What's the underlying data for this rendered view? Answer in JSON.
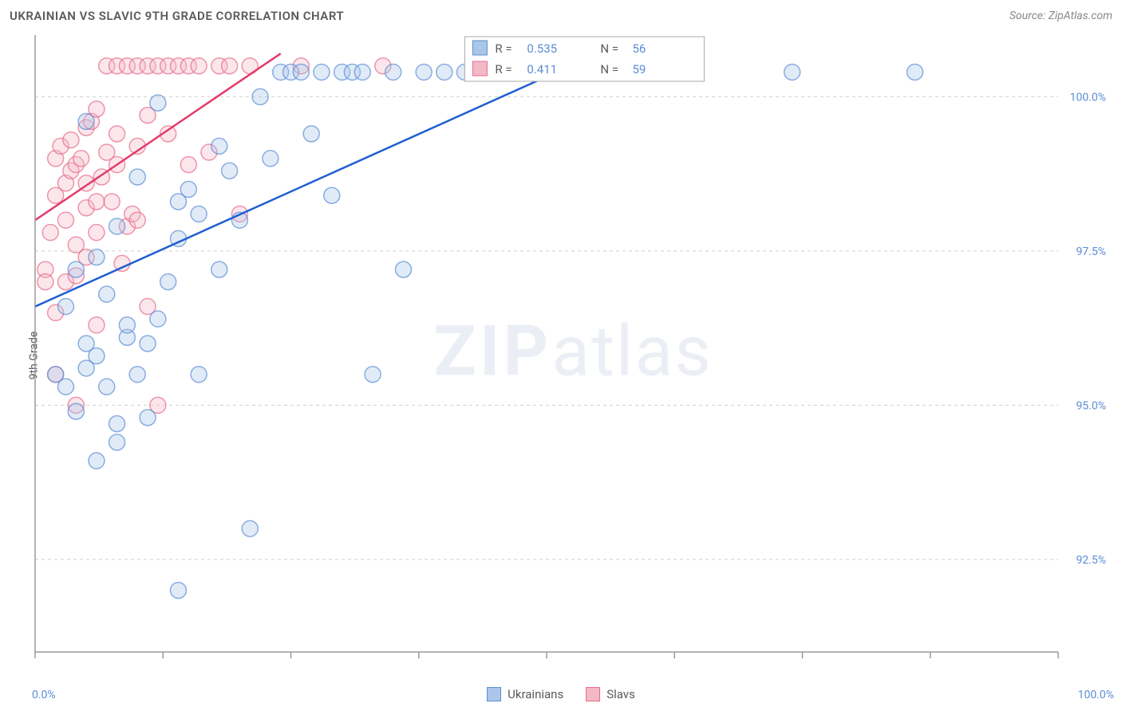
{
  "title": "UKRAINIAN VS SLAVIC 9TH GRADE CORRELATION CHART",
  "source_label": "Source: ZipAtlas.com",
  "ylabel": "9th Grade",
  "watermark": {
    "bold": "ZIP",
    "rest": "atlas"
  },
  "chart": {
    "type": "scatter",
    "background_color": "#ffffff",
    "grid_color": "#cfcfcf",
    "axis_color": "#9a9a9a",
    "xlim": [
      0,
      100
    ],
    "ylim": [
      91,
      101
    ],
    "x_tick_positions": [
      0,
      12.5,
      25,
      37.5,
      50,
      62.5,
      75,
      87.5,
      100
    ],
    "x_tick_labels_shown": {
      "start": "0.0%",
      "end": "100.0%"
    },
    "y_ticks": [
      {
        "v": 92.5,
        "label": "92.5%"
      },
      {
        "v": 95.0,
        "label": "95.0%"
      },
      {
        "v": 97.5,
        "label": "97.5%"
      },
      {
        "v": 100.0,
        "label": "100.0%"
      }
    ],
    "marker_radius": 10,
    "series": [
      {
        "name": "Ukrainians",
        "color_fill": "#aac6e8",
        "color_stroke": "#5b8dd6",
        "trend_color": "#1f5fd0",
        "R": 0.535,
        "N": 56,
        "trend": {
          "x1": 0,
          "y1": 96.6,
          "x2": 55,
          "y2": 100.7
        },
        "points": [
          [
            2,
            95.5
          ],
          [
            3,
            96.6
          ],
          [
            3,
            95.3
          ],
          [
            4,
            94.9
          ],
          [
            4,
            97.2
          ],
          [
            5,
            96.0
          ],
          [
            5,
            95.6
          ],
          [
            5,
            99.6
          ],
          [
            6,
            97.4
          ],
          [
            6,
            95.8
          ],
          [
            6,
            94.1
          ],
          [
            7,
            96.8
          ],
          [
            7,
            95.3
          ],
          [
            8,
            97.9
          ],
          [
            8,
            94.7
          ],
          [
            8,
            94.4
          ],
          [
            9,
            96.1
          ],
          [
            9,
            96.3
          ],
          [
            10,
            95.5
          ],
          [
            10,
            98.7
          ],
          [
            11,
            94.8
          ],
          [
            11,
            96.0
          ],
          [
            12,
            96.4
          ],
          [
            12,
            99.9
          ],
          [
            13,
            97.0
          ],
          [
            14,
            98.3
          ],
          [
            14,
            97.7
          ],
          [
            14,
            92.0
          ],
          [
            15,
            98.5
          ],
          [
            16,
            98.1
          ],
          [
            16,
            95.5
          ],
          [
            18,
            99.2
          ],
          [
            18,
            97.2
          ],
          [
            19,
            98.8
          ],
          [
            20,
            98.0
          ],
          [
            21,
            93.0
          ],
          [
            22,
            100.0
          ],
          [
            23,
            99.0
          ],
          [
            24,
            100.4
          ],
          [
            25,
            100.4
          ],
          [
            26,
            100.4
          ],
          [
            27,
            99.4
          ],
          [
            28,
            100.4
          ],
          [
            29,
            98.4
          ],
          [
            30,
            100.4
          ],
          [
            31,
            100.4
          ],
          [
            32,
            100.4
          ],
          [
            33,
            95.5
          ],
          [
            35,
            100.4
          ],
          [
            36,
            97.2
          ],
          [
            38,
            100.4
          ],
          [
            40,
            100.4
          ],
          [
            42,
            100.4
          ],
          [
            64,
            100.4
          ],
          [
            74,
            100.4
          ],
          [
            86,
            100.4
          ]
        ]
      },
      {
        "name": "Slavs",
        "color_fill": "#f4b9c7",
        "color_stroke": "#e86a8b",
        "trend_color": "#e33b6a",
        "R": 0.411,
        "N": 59,
        "trend": {
          "x1": 0,
          "y1": 98.0,
          "x2": 24,
          "y2": 100.7
        },
        "points": [
          [
            1,
            97.2
          ],
          [
            1,
            97.0
          ],
          [
            1.5,
            97.8
          ],
          [
            2,
            96.5
          ],
          [
            2,
            95.5
          ],
          [
            2,
            98.4
          ],
          [
            2,
            99.0
          ],
          [
            2.5,
            99.2
          ],
          [
            3,
            98.6
          ],
          [
            3,
            98.0
          ],
          [
            3,
            97.0
          ],
          [
            3.5,
            99.3
          ],
          [
            3.5,
            98.8
          ],
          [
            4,
            97.6
          ],
          [
            4,
            97.1
          ],
          [
            4,
            98.9
          ],
          [
            4,
            95.0
          ],
          [
            4.5,
            99.0
          ],
          [
            5,
            98.2
          ],
          [
            5,
            98.6
          ],
          [
            5,
            99.5
          ],
          [
            5,
            97.4
          ],
          [
            5.5,
            99.6
          ],
          [
            6,
            97.8
          ],
          [
            6,
            96.3
          ],
          [
            6,
            98.3
          ],
          [
            6,
            99.8
          ],
          [
            6.5,
            98.7
          ],
          [
            7,
            100.5
          ],
          [
            7,
            99.1
          ],
          [
            7.5,
            98.3
          ],
          [
            8,
            100.5
          ],
          [
            8,
            98.9
          ],
          [
            8,
            99.4
          ],
          [
            8.5,
            97.3
          ],
          [
            9,
            100.5
          ],
          [
            9,
            97.9
          ],
          [
            9.5,
            98.1
          ],
          [
            10,
            100.5
          ],
          [
            10,
            99.2
          ],
          [
            10,
            98.0
          ],
          [
            11,
            96.6
          ],
          [
            11,
            99.7
          ],
          [
            11,
            100.5
          ],
          [
            12,
            100.5
          ],
          [
            12,
            95.0
          ],
          [
            13,
            100.5
          ],
          [
            13,
            99.4
          ],
          [
            14,
            100.5
          ],
          [
            15,
            100.5
          ],
          [
            15,
            98.9
          ],
          [
            16,
            100.5
          ],
          [
            17,
            99.1
          ],
          [
            18,
            100.5
          ],
          [
            19,
            100.5
          ],
          [
            20,
            98.1
          ],
          [
            21,
            100.5
          ],
          [
            26,
            100.5
          ],
          [
            34,
            100.5
          ]
        ]
      }
    ],
    "corr_legend": {
      "labels": {
        "R_prefix": "R =",
        "N_prefix": "N ="
      },
      "box_stroke": "#aaaaaa",
      "value_color": "#5b8dd6",
      "label_color": "#5a5a5a"
    },
    "bottom_legend": [
      {
        "swatch_fill": "#aac6e8",
        "swatch_stroke": "#5b8dd6",
        "label": "Ukrainians"
      },
      {
        "swatch_fill": "#f4b9c7",
        "swatch_stroke": "#e86a8b",
        "label": "Slavs"
      }
    ]
  }
}
